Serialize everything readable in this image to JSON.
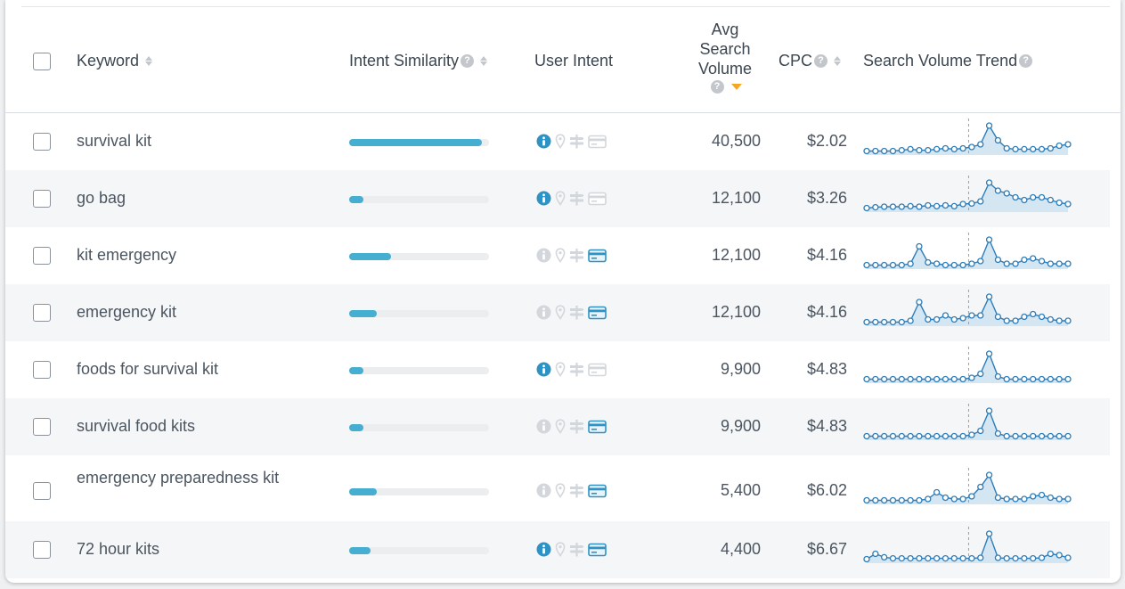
{
  "header": {
    "keyword": "Keyword",
    "intent_similarity": "Intent Similarity",
    "user_intent": "User Intent",
    "avg_search_volume_lines": [
      "Avg",
      "Search",
      "Volume"
    ],
    "cpc": "CPC",
    "search_volume_trend": "Search Volume Trend",
    "help_glyph": "?"
  },
  "colors": {
    "accent": "#46aed0",
    "icon_active": "#2e93c4",
    "icon_inactive": "#d3d7db",
    "sort_active": "#f5a623",
    "trend_line": "#2e7db8",
    "trend_fill": "#d5e6f3"
  },
  "rows": [
    {
      "keyword": "survival kit",
      "similarity": 0.95,
      "volume": "40,500",
      "cpc": "$2.02",
      "intent": {
        "informational": true,
        "local": false,
        "navigational": false,
        "transactional": false
      },
      "trend": [
        0.05,
        0.05,
        0.05,
        0.05,
        0.08,
        0.12,
        0.08,
        0.08,
        0.12,
        0.15,
        0.12,
        0.15,
        0.2,
        0.3,
        1.0,
        0.45,
        0.15,
        0.12,
        0.12,
        0.12,
        0.12,
        0.15,
        0.25,
        0.3
      ]
    },
    {
      "keyword": "go bag",
      "similarity": 0.1,
      "volume": "12,100",
      "cpc": "$3.26",
      "intent": {
        "informational": true,
        "local": false,
        "navigational": false,
        "transactional": false
      },
      "trend": [
        0.05,
        0.08,
        0.1,
        0.1,
        0.1,
        0.12,
        0.1,
        0.15,
        0.12,
        0.15,
        0.12,
        0.2,
        0.22,
        0.3,
        1.0,
        0.7,
        0.6,
        0.45,
        0.35,
        0.45,
        0.45,
        0.35,
        0.25,
        0.2
      ]
    },
    {
      "keyword": "kit emergency",
      "similarity": 0.3,
      "volume": "12,100",
      "cpc": "$4.16",
      "intent": {
        "informational": false,
        "local": false,
        "navigational": false,
        "transactional": true
      },
      "trend": [
        0.05,
        0.05,
        0.05,
        0.05,
        0.05,
        0.1,
        0.75,
        0.15,
        0.1,
        0.05,
        0.05,
        0.05,
        0.1,
        0.2,
        1.0,
        0.25,
        0.1,
        0.1,
        0.25,
        0.3,
        0.2,
        0.1,
        0.1,
        0.1
      ]
    },
    {
      "keyword": "emergency kit",
      "similarity": 0.2,
      "volume": "12,100",
      "cpc": "$4.16",
      "intent": {
        "informational": false,
        "local": false,
        "navigational": false,
        "transactional": true
      },
      "trend": [
        0.05,
        0.05,
        0.05,
        0.05,
        0.05,
        0.1,
        0.8,
        0.15,
        0.15,
        0.3,
        0.15,
        0.2,
        0.3,
        0.3,
        1.0,
        0.25,
        0.1,
        0.1,
        0.25,
        0.35,
        0.25,
        0.15,
        0.1,
        0.1
      ]
    },
    {
      "keyword": "foods for survival kit",
      "similarity": 0.1,
      "volume": "9,900",
      "cpc": "$4.83",
      "intent": {
        "informational": true,
        "local": false,
        "navigational": false,
        "transactional": false
      },
      "trend": [
        0.05,
        0.05,
        0.05,
        0.05,
        0.05,
        0.05,
        0.05,
        0.05,
        0.05,
        0.05,
        0.05,
        0.05,
        0.1,
        0.25,
        1.0,
        0.15,
        0.05,
        0.05,
        0.05,
        0.05,
        0.05,
        0.05,
        0.05,
        0.05
      ]
    },
    {
      "keyword": "survival food kits",
      "similarity": 0.1,
      "volume": "9,900",
      "cpc": "$4.83",
      "intent": {
        "informational": false,
        "local": false,
        "navigational": false,
        "transactional": true
      },
      "trend": [
        0.05,
        0.05,
        0.05,
        0.05,
        0.05,
        0.05,
        0.05,
        0.05,
        0.05,
        0.05,
        0.05,
        0.05,
        0.1,
        0.25,
        1.0,
        0.15,
        0.05,
        0.05,
        0.05,
        0.05,
        0.05,
        0.05,
        0.05,
        0.05
      ]
    },
    {
      "keyword": "emergency preparedness kit",
      "similarity": 0.2,
      "volume": "5,400",
      "cpc": "$6.02",
      "intent": {
        "informational": false,
        "local": false,
        "navigational": false,
        "transactional": true
      },
      "trend": [
        0.05,
        0.05,
        0.05,
        0.05,
        0.05,
        0.05,
        0.05,
        0.1,
        0.35,
        0.15,
        0.1,
        0.1,
        0.2,
        0.55,
        1.0,
        0.15,
        0.1,
        0.1,
        0.1,
        0.2,
        0.25,
        0.15,
        0.1,
        0.1
      ]
    },
    {
      "keyword": "72 hour kits",
      "similarity": 0.15,
      "volume": "4,400",
      "cpc": "$6.67",
      "intent": {
        "informational": true,
        "local": false,
        "navigational": false,
        "transactional": true
      },
      "trend": [
        0.05,
        0.25,
        0.12,
        0.08,
        0.08,
        0.08,
        0.08,
        0.08,
        0.08,
        0.08,
        0.08,
        0.08,
        0.08,
        0.1,
        1.0,
        0.1,
        0.08,
        0.08,
        0.08,
        0.08,
        0.1,
        0.25,
        0.2,
        0.1
      ]
    }
  ]
}
